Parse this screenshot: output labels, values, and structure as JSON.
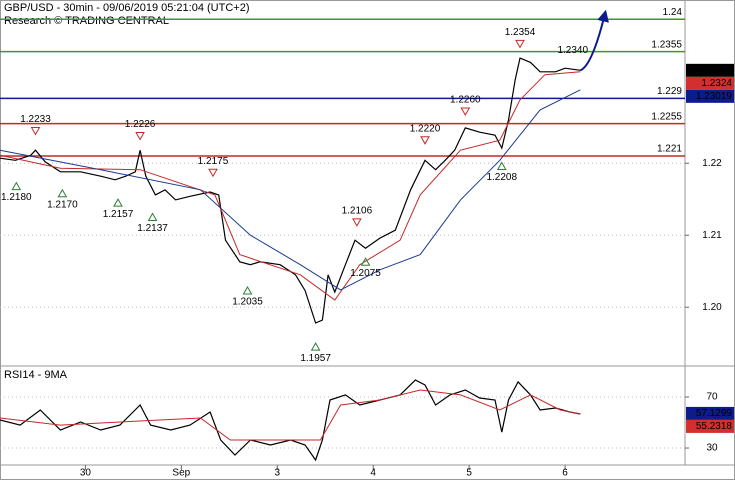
{
  "chart_data": [
    {
      "type": "line",
      "title": "GBP/USD - 30min - 09/06/2019 05:21:04 (UTC+2)",
      "subtitle": "Research © TRADING CENTRAL",
      "xlim": [
        -0.89,
        6.25
      ],
      "ylim": [
        1.19197,
        1.24267
      ],
      "yticks": [
        1.22,
        1.21,
        {
          "value": 1.2,
          "label": "1.20"
        }
      ],
      "grid": true,
      "series": [
        {
          "color": "#000000",
          "x": [
            -0.89,
            -0.73,
            -0.57,
            -0.52,
            -0.42,
            -0.26,
            -0.05,
            0.16,
            0.31,
            0.42,
            0.52,
            0.57,
            0.63,
            0.73,
            0.83,
            0.94,
            1.09,
            1.3,
            1.39,
            1.46,
            1.61,
            1.72,
            1.82,
            2.03,
            2.19,
            2.29,
            2.4,
            2.47,
            2.53,
            2.6,
            2.71,
            2.81,
            2.92,
            3.07,
            3.23,
            3.39,
            3.54,
            3.65,
            3.75,
            3.85,
            3.96,
            4.11,
            4.27,
            4.34,
            4.41,
            4.48,
            4.53,
            4.64,
            4.74,
            4.9,
            5.0,
            5.16
          ],
          "values": [
            1.2207,
            1.2204,
            1.2211,
            1.2218,
            1.2202,
            1.2188,
            1.2188,
            1.2182,
            1.2177,
            1.2182,
            1.2188,
            1.2218,
            1.2182,
            1.2156,
            1.2163,
            1.2149,
            1.2154,
            1.216,
            1.2156,
            1.2093,
            1.2063,
            1.2059,
            1.2063,
            1.2059,
            1.2045,
            1.2023,
            1.1978,
            1.1982,
            1.2045,
            1.2021,
            1.2059,
            1.2093,
            1.2082,
            1.2096,
            1.2107,
            1.2163,
            1.2204,
            1.2191,
            1.2204,
            1.2218,
            1.2249,
            1.2243,
            1.2239,
            1.2221,
            1.226,
            1.2316,
            1.2346,
            1.234,
            1.2327,
            1.2327,
            1.2332,
            1.2329
          ]
        },
        {
          "color": "#c62828",
          "x": [
            -0.89,
            -0.26,
            0.57,
            1.35,
            1.61,
            2.24,
            2.6,
            2.86,
            3.28,
            3.49,
            3.91,
            4.32,
            4.53,
            4.79,
            5.16
          ],
          "values": [
            1.2211,
            1.2193,
            1.2191,
            1.2156,
            1.2073,
            1.2045,
            1.201,
            1.2059,
            1.2093,
            1.2156,
            1.2218,
            1.2232,
            1.2288,
            1.2323,
            1.2327
          ]
        },
        {
          "color": "#1a3a8f",
          "x": [
            -0.89,
            0.16,
            1.2,
            1.72,
            2.24,
            2.66,
            3.07,
            3.49,
            3.91,
            4.32,
            4.74,
            5.16
          ],
          "values": [
            1.2218,
            1.2191,
            1.2163,
            1.21,
            1.2059,
            1.2024,
            1.2052,
            1.2073,
            1.2149,
            1.2204,
            1.2274,
            1.2302
          ]
        }
      ],
      "forecast": {
        "color": "#0d1b8c",
        "x": [
          5.16,
          5.42
        ],
        "values": [
          1.2329,
          1.241
        ]
      },
      "levels": [
        {
          "value": 1.24,
          "label": "1.24",
          "color": "#2e9e2e"
        },
        {
          "value": 1.2355,
          "label": "1.2355",
          "color": "#2e9e2e"
        },
        {
          "value": 1.229,
          "label": "1.229",
          "color": "#0d1b8c"
        },
        {
          "value": 1.2255,
          "label": "1.2255",
          "color": "#c62828"
        },
        {
          "value": 1.221,
          "label": "1.221",
          "color": "#c62828"
        }
      ],
      "price_tags": [
        {
          "value": 1.2329,
          "label": "1.2329",
          "color": "#000000"
        },
        {
          "value": 1.2324,
          "label": "1.2324",
          "color": "#d32f2f"
        },
        {
          "value": 1.23019,
          "label": "1.23019",
          "color": "#0d1b8c"
        }
      ],
      "annotations": [
        {
          "x": -0.52,
          "value": 1.2233,
          "label": "1.2233",
          "kind": "high"
        },
        {
          "x": 0.57,
          "value": 1.2226,
          "label": "1.2226",
          "kind": "high"
        },
        {
          "x": 1.33,
          "value": 1.2175,
          "label": "1.2175",
          "kind": "high"
        },
        {
          "x": 2.83,
          "value": 1.2106,
          "label": "1.2106",
          "kind": "high"
        },
        {
          "x": 3.54,
          "value": 1.222,
          "label": "1.2220",
          "kind": "high"
        },
        {
          "x": 3.96,
          "value": 1.226,
          "label": "1.2260",
          "kind": "high"
        },
        {
          "x": 4.53,
          "value": 1.2354,
          "label": "1.2354",
          "kind": "high"
        },
        {
          "x": 5.08,
          "value": 1.234,
          "label": "1.2340",
          "kind": "note"
        },
        {
          "x": -0.72,
          "value": 1.218,
          "label": "1.2180",
          "kind": "low"
        },
        {
          "x": -0.24,
          "value": 1.217,
          "label": "1.2170",
          "kind": "low"
        },
        {
          "x": 0.34,
          "value": 1.2157,
          "label": "1.2157",
          "kind": "low"
        },
        {
          "x": 0.7,
          "value": 1.2137,
          "label": "1.2137",
          "kind": "low"
        },
        {
          "x": 1.69,
          "value": 1.2035,
          "label": "1.2035",
          "kind": "low"
        },
        {
          "x": 2.4,
          "value": 1.1957,
          "label": "1.1957",
          "kind": "low"
        },
        {
          "x": 2.92,
          "value": 1.2075,
          "label": "1.2075",
          "kind": "low"
        },
        {
          "x": 4.34,
          "value": 1.2208,
          "label": "1.2208",
          "kind": "low"
        }
      ]
    },
    {
      "type": "line",
      "title": "RSI14 - 9MA",
      "xlim": [
        -0.89,
        6.25
      ],
      "ylim": [
        16.7,
        93.5
      ],
      "yticks": [
        70,
        30
      ],
      "xticks": [
        {
          "value": 0,
          "label": "30"
        },
        {
          "value": 1,
          "label": "Sep"
        },
        {
          "value": 2,
          "label": "3"
        },
        {
          "value": 3,
          "label": "4"
        },
        {
          "value": 4,
          "label": "5"
        },
        {
          "value": 5,
          "label": "6"
        }
      ],
      "series": [
        {
          "color": "#000000",
          "x": [
            -0.89,
            -0.68,
            -0.47,
            -0.26,
            -0.05,
            0.16,
            0.36,
            0.57,
            0.68,
            0.89,
            1.09,
            1.3,
            1.41,
            1.56,
            1.72,
            1.93,
            2.14,
            2.29,
            2.4,
            2.47,
            2.55,
            2.71,
            2.86,
            3.07,
            3.28,
            3.44,
            3.54,
            3.65,
            3.8,
            3.96,
            4.11,
            4.27,
            4.34,
            4.41,
            4.51,
            4.64,
            4.74,
            4.9,
            5.05,
            5.16
          ],
          "values": [
            52.0,
            48.0,
            59.8,
            44.1,
            50.4,
            44.1,
            48.0,
            63.7,
            48.0,
            44.1,
            48.0,
            58.2,
            36.3,
            24.5,
            36.3,
            32.4,
            36.3,
            32.4,
            20.6,
            36.3,
            67.6,
            71.6,
            63.7,
            67.6,
            71.6,
            83.3,
            79.4,
            63.7,
            71.6,
            75.5,
            69.2,
            67.6,
            42.5,
            67.6,
            81.8,
            71.6,
            59.8,
            61.4,
            58.2,
            56.7
          ]
        },
        {
          "color": "#c62828",
          "x": [
            -0.89,
            -0.26,
            0.36,
            1.2,
            1.51,
            2.03,
            2.45,
            2.66,
            3.07,
            3.49,
            3.91,
            4.32,
            4.64,
            4.95,
            5.16
          ],
          "values": [
            53.5,
            48.0,
            50.4,
            53.5,
            36.3,
            36.3,
            36.3,
            63.7,
            67.6,
            75.5,
            71.6,
            59.8,
            71.6,
            59.8,
            56.7
          ]
        }
      ],
      "price_tags": [
        {
          "value": 57.1299,
          "label": "57.1299",
          "color": "#0d1b8c"
        },
        {
          "value": 55.2318,
          "label": "55.2318",
          "color": "#d32f2f"
        }
      ]
    }
  ]
}
